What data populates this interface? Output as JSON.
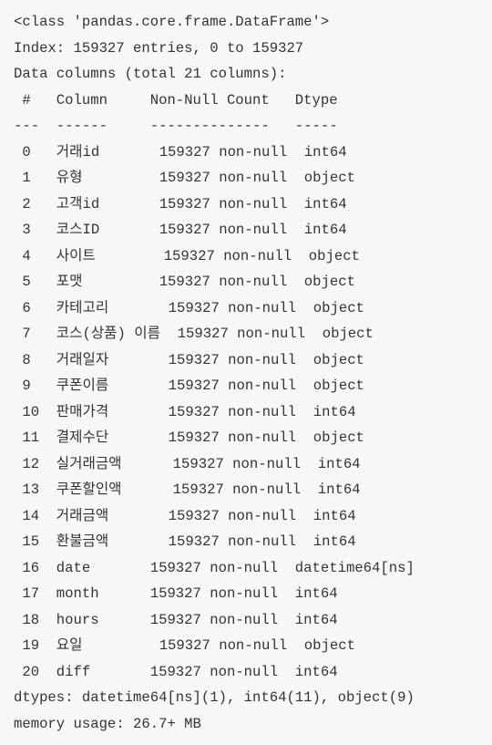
{
  "output": {
    "header": [
      "<class 'pandas.core.frame.DataFrame'>",
      "Index: 159327 entries, 0 to 159327",
      "Data columns (total 21 columns):",
      " #   Column     Non-Null Count   Dtype",
      "---  ------     --------------   -----"
    ],
    "rows": [
      " 0   거래id       159327 non-null  int64",
      " 1   유형         159327 non-null  object",
      " 2   고객id       159327 non-null  int64",
      " 3   코스ID       159327 non-null  int64",
      " 4   사이트        159327 non-null  object",
      " 5   포맷         159327 non-null  object",
      " 6   카테고리       159327 non-null  object",
      " 7   코스(상품) 이름  159327 non-null  object",
      " 8   거래일자       159327 non-null  object",
      " 9   쿠폰이름       159327 non-null  object",
      " 10  판매가격       159327 non-null  int64",
      " 11  결제수단       159327 non-null  object",
      " 12  실거래금액      159327 non-null  int64",
      " 13  쿠폰할인액      159327 non-null  int64",
      " 14  거래금액       159327 non-null  int64",
      " 15  환불금액       159327 non-null  int64",
      " 16  date       159327 non-null  datetime64[ns]",
      " 17  month      159327 non-null  int64",
      " 18  hours      159327 non-null  int64",
      " 19  요일         159327 non-null  object",
      " 20  diff       159327 non-null  int64"
    ],
    "footer": [
      "dtypes: datetime64[ns](1), int64(11), object(9)",
      "memory usage: 26.7+ MB"
    ]
  }
}
